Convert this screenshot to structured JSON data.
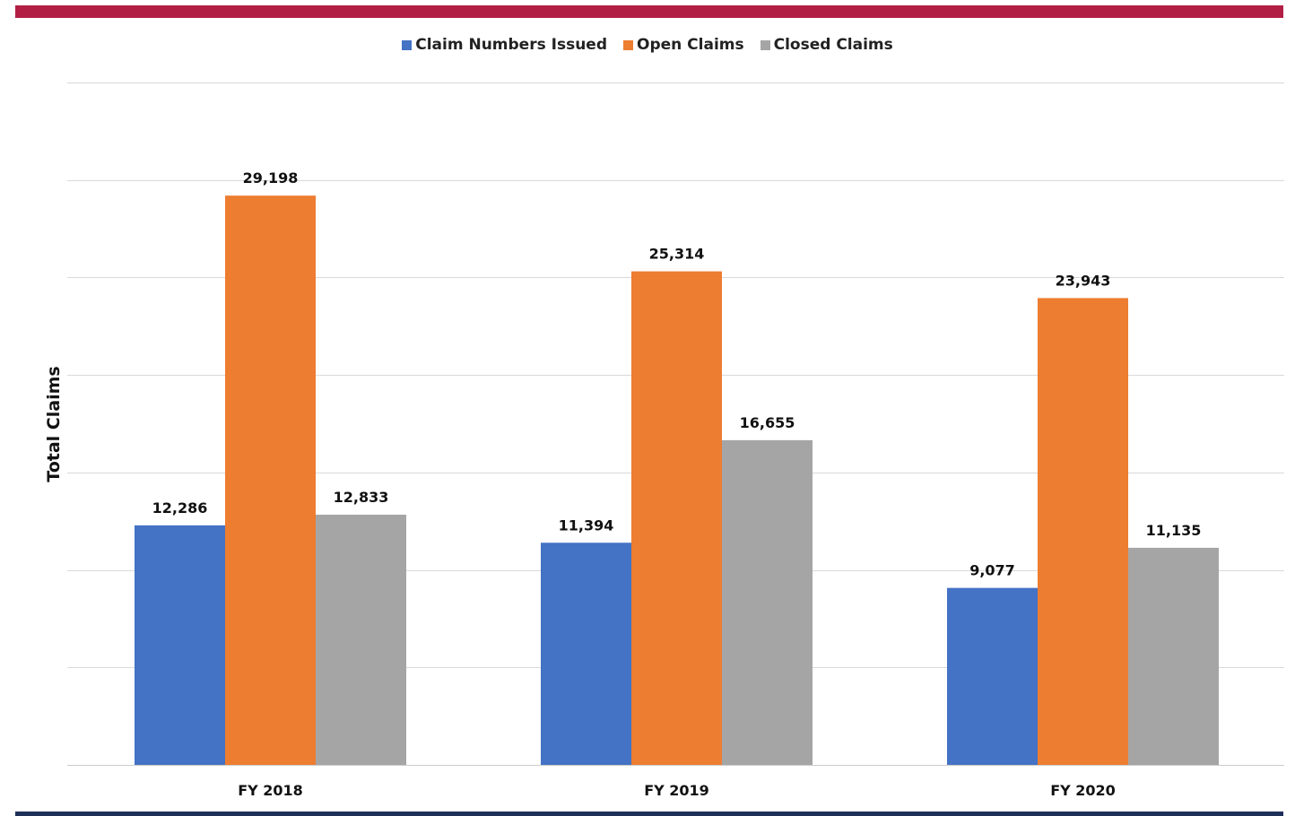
{
  "colors": {
    "top_band": "#b21f45",
    "bottom_band": "#1e2f5a",
    "gridline": "#d9d9d9",
    "axis_line": "#cccccc"
  },
  "chart_data": {
    "type": "bar",
    "title": "",
    "xlabel": "",
    "ylabel": "Total Claims",
    "categories": [
      "FY 2018",
      "FY 2019",
      "FY 2020"
    ],
    "series": [
      {
        "name": "Claim Numbers Issued",
        "color": "#4472c4",
        "values": [
          12286,
          11394,
          9077
        ],
        "labels": [
          "12,286",
          "11,394",
          "9,077"
        ]
      },
      {
        "name": "Open Claims",
        "color": "#ed7d31",
        "values": [
          29198,
          25314,
          23943
        ],
        "labels": [
          "29,198",
          "25,314",
          "23,943"
        ]
      },
      {
        "name": "Closed Claims",
        "color": "#a5a5a5",
        "values": [
          12833,
          16655,
          11135
        ],
        "labels": [
          "12,833",
          "16,655",
          "11,135"
        ]
      }
    ],
    "ylim": [
      0,
      35000
    ],
    "y_gridline_step": 5000,
    "y_tick_labels_shown": false,
    "grid": true,
    "legend_position": "top-center"
  }
}
